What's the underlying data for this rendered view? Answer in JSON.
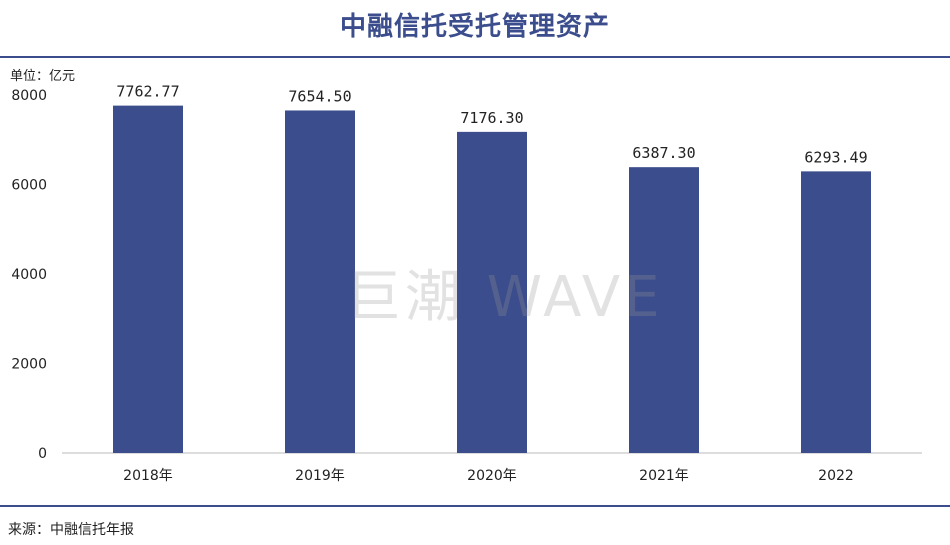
{
  "title": "中融信托受托管理资产",
  "unit_label": "单位：亿元",
  "source": "来源：中融信托年报",
  "watermark": "巨潮 WAVE",
  "colors": {
    "bar": "#3b4d8c",
    "title": "#3b4d8c",
    "axis": "#bbbbbb"
  },
  "chart_data": {
    "type": "bar",
    "title": "中融信托受托管理资产",
    "categories": [
      "2018年",
      "2019年",
      "2020年",
      "2021年",
      "2022"
    ],
    "values": [
      7762.77,
      7654.5,
      7176.3,
      6387.3,
      6293.49
    ],
    "value_labels": [
      "7762.77",
      "7654.50",
      "7176.30",
      "6387.30",
      "6293.49"
    ],
    "ylabel": "单位：亿元",
    "xlabel": "",
    "ylim": [
      0,
      8000
    ],
    "yticks": [
      0,
      2000,
      4000,
      6000,
      8000
    ],
    "grid": false,
    "legend": "none"
  }
}
